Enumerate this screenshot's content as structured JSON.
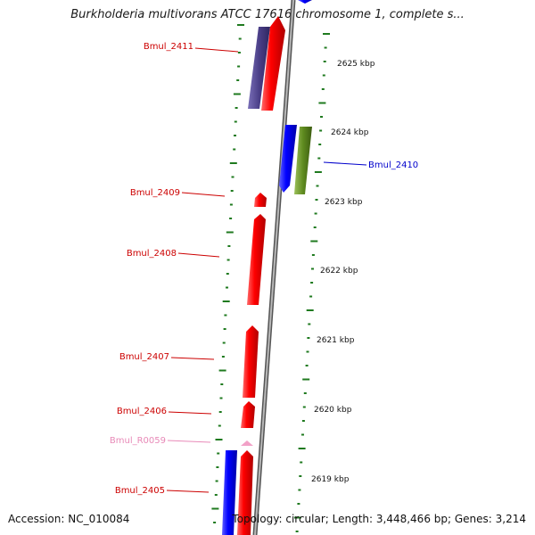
{
  "title": "Burkholderia multivorans ATCC 17616 chromosome 1, complete s...",
  "footer": {
    "accession": "Accession: NC_010084",
    "summary": "Topology: circular; Length: 3,448,466 bp; Genes: 3,214"
  },
  "colors": {
    "forward_gene": "#ff0000",
    "reverse_gene": "#0000ff",
    "forward_dark": "#4b3f88",
    "reverse_green": "#5e8a1f",
    "rna": "#f2a1c7",
    "backbone": "#7a7a7a",
    "tick": "#1f7a1f",
    "label_red": "#cc0000",
    "label_blue": "#0000cc",
    "label_pink": "#e88ab8"
  },
  "scale_labels": [
    "2625 kbp",
    "2624 kbp",
    "2623 kbp",
    "2622 kbp",
    "2621 kbp",
    "2620 kbp",
    "2619 kbp"
  ],
  "gene_labels": [
    "Bmul_2411",
    "Bmul_2410",
    "Bmul_2409",
    "Bmul_2408",
    "Bmul_2407",
    "Bmul_2406",
    "Bmul_R0059",
    "Bmul_2405"
  ]
}
